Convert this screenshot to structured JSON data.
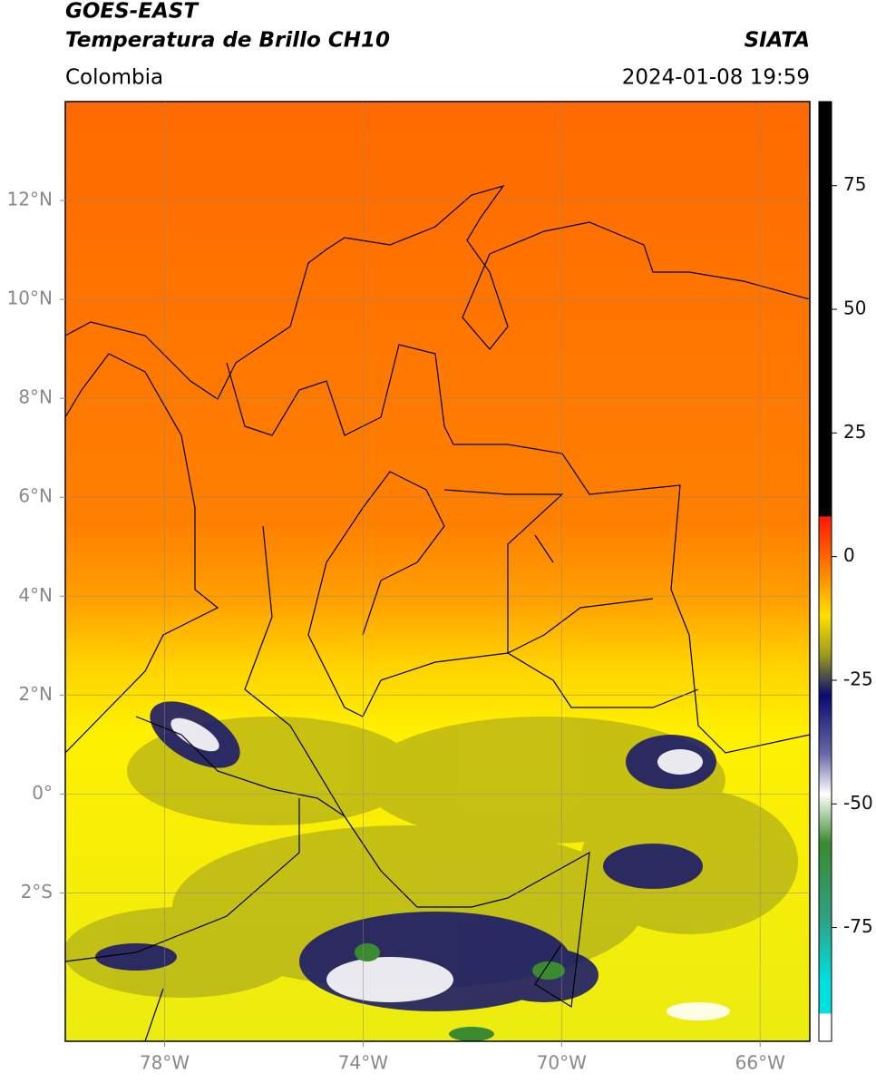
{
  "header": {
    "title": "GOES-EAST",
    "subtitle": "Temperatura de Brillo CH10",
    "source": "SIATA",
    "region": "Colombia",
    "timestamp": "2024-01-08 19:59"
  },
  "map": {
    "lon_range": [
      -80,
      -65
    ],
    "lat_range": [
      -5,
      14
    ],
    "grid": true,
    "lon_ticks": [
      {
        "value": -78,
        "label": "78°W"
      },
      {
        "value": -74,
        "label": "74°W"
      },
      {
        "value": -70,
        "label": "70°W"
      },
      {
        "value": -66,
        "label": "66°W"
      }
    ],
    "lat_ticks": [
      {
        "value": 12,
        "label": "12°N"
      },
      {
        "value": 10,
        "label": "10°N"
      },
      {
        "value": 8,
        "label": "8°N"
      },
      {
        "value": 6,
        "label": "6°N"
      },
      {
        "value": 4,
        "label": "4°N"
      },
      {
        "value": 2,
        "label": "2°N"
      },
      {
        "value": 0,
        "label": "0°"
      },
      {
        "value": -2,
        "label": "2°S"
      }
    ]
  },
  "colorbar": {
    "range": [
      -98,
      92
    ],
    "ticks": [
      75,
      50,
      25,
      0,
      -25,
      -50,
      -75
    ]
  }
}
